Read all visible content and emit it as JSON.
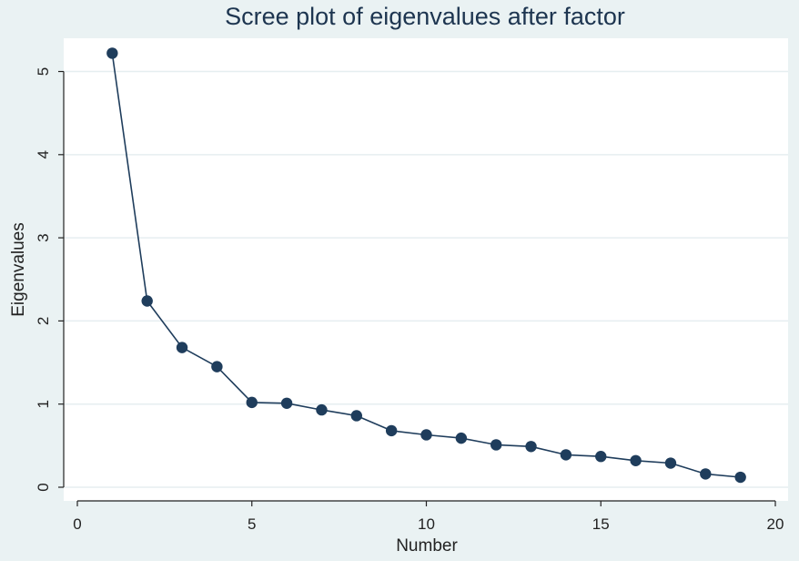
{
  "chart_data": {
    "type": "line",
    "title": "Scree plot of eigenvalues after factor",
    "xlabel": "Number",
    "ylabel": "Eigenvalues",
    "xlim": [
      0,
      20
    ],
    "ylim": [
      0,
      5.4
    ],
    "xticks": [
      0,
      5,
      10,
      15,
      20
    ],
    "yticks": [
      0,
      1,
      2,
      3,
      4,
      5
    ],
    "grid": true,
    "legend": "none",
    "colors": {
      "background": "#eaf2f3",
      "plot_area": "#ffffff",
      "grid": "#e6eef0",
      "series": "#1f3d5c",
      "title": "#1d3550"
    },
    "series": [
      {
        "x": [
          1,
          2,
          3,
          4,
          5,
          6,
          7,
          8,
          9,
          10,
          11,
          12,
          13,
          14,
          15,
          16,
          17,
          18,
          19
        ],
        "values": [
          5.22,
          2.24,
          1.68,
          1.45,
          1.02,
          1.01,
          0.93,
          0.86,
          0.68,
          0.63,
          0.59,
          0.51,
          0.49,
          0.39,
          0.37,
          0.32,
          0.29,
          0.16,
          0.12
        ]
      }
    ]
  }
}
